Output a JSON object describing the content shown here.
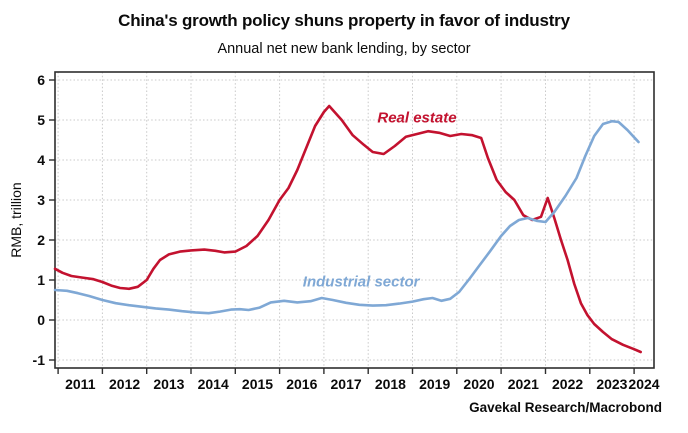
{
  "header": {
    "title": "China's growth policy shuns property in favor of industry",
    "subtitle": "Annual net new bank lending, by sector"
  },
  "source": "Gavekal Research/Macrobond",
  "chart_data": {
    "type": "line",
    "title": "China's growth policy shuns property in favor of industry",
    "subtitle": "Annual net new bank lending, by sector",
    "xlabel": "",
    "ylabel": "RMB, trillion",
    "ylim": [
      -1.2,
      6.2
    ],
    "xlim": [
      2010.93,
      2024.45
    ],
    "y_ticks": [
      -1,
      0,
      1,
      2,
      3,
      4,
      5,
      6
    ],
    "x_ticks": [
      2011,
      2012,
      2013,
      2014,
      2015,
      2016,
      2017,
      2018,
      2019,
      2020,
      2021,
      2022,
      2023,
      2024
    ],
    "grid": "dotted, both axes",
    "legend_position": "inline labels on plot",
    "colors": {
      "grid": "#c9c9c9",
      "spine": "#2e2e2e",
      "text": "#0b0b0b"
    },
    "series": [
      {
        "name": "Real estate",
        "color": "#c3122f",
        "label_x": 2019.1,
        "label_y": 5.05,
        "points": [
          [
            2010.93,
            1.28
          ],
          [
            2011.1,
            1.18
          ],
          [
            2011.3,
            1.1
          ],
          [
            2011.55,
            1.06
          ],
          [
            2011.8,
            1.02
          ],
          [
            2012.0,
            0.95
          ],
          [
            2012.2,
            0.86
          ],
          [
            2012.4,
            0.8
          ],
          [
            2012.6,
            0.78
          ],
          [
            2012.8,
            0.83
          ],
          [
            2013.0,
            1.0
          ],
          [
            2013.15,
            1.28
          ],
          [
            2013.3,
            1.5
          ],
          [
            2013.5,
            1.64
          ],
          [
            2013.75,
            1.71
          ],
          [
            2014.0,
            1.74
          ],
          [
            2014.3,
            1.76
          ],
          [
            2014.55,
            1.73
          ],
          [
            2014.75,
            1.69
          ],
          [
            2015.0,
            1.71
          ],
          [
            2015.25,
            1.85
          ],
          [
            2015.5,
            2.1
          ],
          [
            2015.75,
            2.5
          ],
          [
            2016.0,
            3.0
          ],
          [
            2016.2,
            3.3
          ],
          [
            2016.4,
            3.75
          ],
          [
            2016.6,
            4.3
          ],
          [
            2016.8,
            4.85
          ],
          [
            2017.0,
            5.2
          ],
          [
            2017.12,
            5.35
          ],
          [
            2017.4,
            5.0
          ],
          [
            2017.65,
            4.62
          ],
          [
            2017.9,
            4.38
          ],
          [
            2018.1,
            4.2
          ],
          [
            2018.35,
            4.15
          ],
          [
            2018.6,
            4.35
          ],
          [
            2018.85,
            4.58
          ],
          [
            2019.1,
            4.65
          ],
          [
            2019.35,
            4.72
          ],
          [
            2019.6,
            4.68
          ],
          [
            2019.85,
            4.6
          ],
          [
            2020.1,
            4.65
          ],
          [
            2020.35,
            4.62
          ],
          [
            2020.55,
            4.55
          ],
          [
            2020.7,
            4.05
          ],
          [
            2020.9,
            3.5
          ],
          [
            2021.1,
            3.2
          ],
          [
            2021.3,
            3.0
          ],
          [
            2021.5,
            2.62
          ],
          [
            2021.7,
            2.5
          ],
          [
            2021.9,
            2.58
          ],
          [
            2022.05,
            3.05
          ],
          [
            2022.2,
            2.55
          ],
          [
            2022.35,
            2.0
          ],
          [
            2022.5,
            1.5
          ],
          [
            2022.65,
            0.9
          ],
          [
            2022.8,
            0.42
          ],
          [
            2022.95,
            0.12
          ],
          [
            2023.1,
            -0.1
          ],
          [
            2023.3,
            -0.3
          ],
          [
            2023.5,
            -0.48
          ],
          [
            2023.75,
            -0.62
          ],
          [
            2024.0,
            -0.73
          ],
          [
            2024.15,
            -0.8
          ]
        ]
      },
      {
        "name": "Industrial sector",
        "color": "#7fa8d5",
        "label_x": 2017.84,
        "label_y": 0.95,
        "points": [
          [
            2010.93,
            0.75
          ],
          [
            2011.2,
            0.73
          ],
          [
            2011.45,
            0.67
          ],
          [
            2011.7,
            0.6
          ],
          [
            2012.0,
            0.5
          ],
          [
            2012.3,
            0.42
          ],
          [
            2012.6,
            0.37
          ],
          [
            2012.9,
            0.33
          ],
          [
            2013.2,
            0.29
          ],
          [
            2013.5,
            0.26
          ],
          [
            2013.8,
            0.22
          ],
          [
            2014.1,
            0.19
          ],
          [
            2014.4,
            0.17
          ],
          [
            2014.65,
            0.21
          ],
          [
            2014.9,
            0.26
          ],
          [
            2015.1,
            0.27
          ],
          [
            2015.3,
            0.25
          ],
          [
            2015.55,
            0.31
          ],
          [
            2015.8,
            0.44
          ],
          [
            2016.1,
            0.48
          ],
          [
            2016.4,
            0.44
          ],
          [
            2016.7,
            0.47
          ],
          [
            2016.95,
            0.55
          ],
          [
            2017.2,
            0.5
          ],
          [
            2017.5,
            0.43
          ],
          [
            2017.8,
            0.38
          ],
          [
            2018.1,
            0.36
          ],
          [
            2018.4,
            0.37
          ],
          [
            2018.7,
            0.41
          ],
          [
            2019.0,
            0.46
          ],
          [
            2019.25,
            0.52
          ],
          [
            2019.45,
            0.55
          ],
          [
            2019.65,
            0.48
          ],
          [
            2019.85,
            0.53
          ],
          [
            2020.05,
            0.7
          ],
          [
            2020.3,
            1.05
          ],
          [
            2020.5,
            1.35
          ],
          [
            2020.75,
            1.72
          ],
          [
            2021.0,
            2.1
          ],
          [
            2021.2,
            2.35
          ],
          [
            2021.4,
            2.5
          ],
          [
            2021.6,
            2.55
          ],
          [
            2021.8,
            2.48
          ],
          [
            2022.0,
            2.45
          ],
          [
            2022.2,
            2.7
          ],
          [
            2022.45,
            3.1
          ],
          [
            2022.7,
            3.55
          ],
          [
            2022.9,
            4.1
          ],
          [
            2023.1,
            4.6
          ],
          [
            2023.3,
            4.9
          ],
          [
            2023.5,
            4.97
          ],
          [
            2023.65,
            4.95
          ],
          [
            2023.85,
            4.75
          ],
          [
            2024.1,
            4.45
          ]
        ]
      }
    ]
  }
}
